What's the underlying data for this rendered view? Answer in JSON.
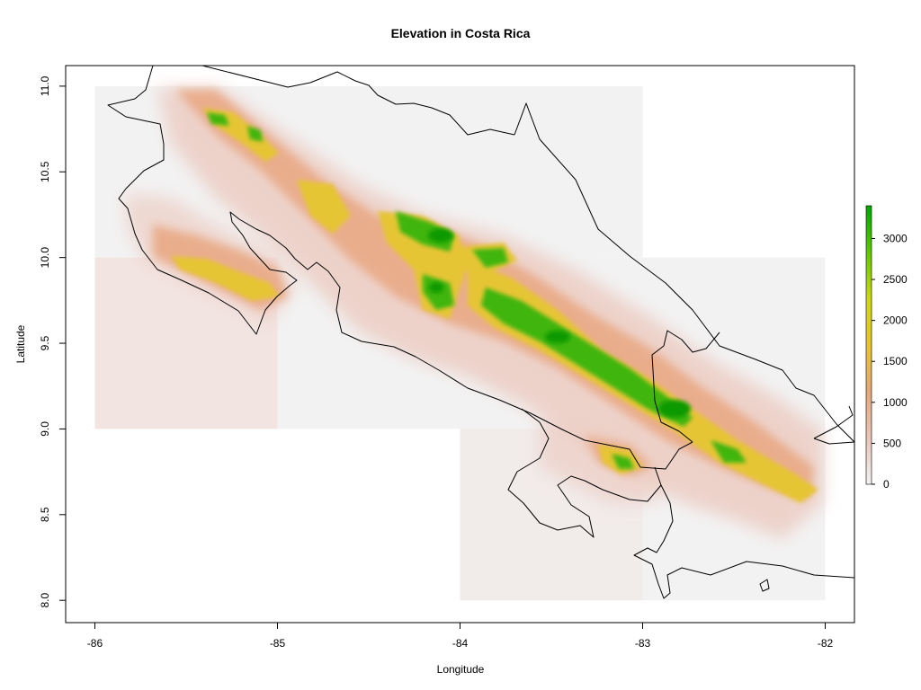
{
  "chart_data": {
    "type": "heatmap",
    "title": "Elevation in Costa Rica",
    "xlabel": "Longitude",
    "ylabel": "Latitude",
    "x_ticks": [
      -86,
      -85,
      -84,
      -83,
      -82
    ],
    "x_tick_labels": [
      "-86",
      "-85",
      "-84",
      "-83",
      "-82"
    ],
    "y_ticks": [
      8.0,
      8.5,
      9.0,
      9.5,
      10.0,
      10.5,
      11.0
    ],
    "y_tick_labels": [
      "8.0",
      "8.5",
      "9.0",
      "9.5",
      "10.0",
      "10.5",
      "11.0"
    ],
    "xlim": [
      -86.16,
      -81.84
    ],
    "ylim": [
      7.87,
      11.12
    ],
    "legend": {
      "position": "right",
      "min": 0,
      "max": 3400,
      "ticks": [
        0,
        500,
        1000,
        1500,
        2000,
        2500,
        3000
      ],
      "tick_labels": [
        "0",
        "500",
        "1000",
        "1500",
        "2000",
        "2500",
        "3000"
      ],
      "colors": [
        "#f2f2f2",
        "#eac5b6",
        "#e8a779",
        "#e9c232",
        "#cfd90a",
        "#5ec70a",
        "#00a600"
      ]
    },
    "tiles": [
      {
        "lon": [
          -86,
          -85
        ],
        "lat": [
          10,
          11
        ]
      },
      {
        "lon": [
          -85,
          -84
        ],
        "lat": [
          10,
          11
        ]
      },
      {
        "lon": [
          -84,
          -83
        ],
        "lat": [
          10,
          11
        ]
      },
      {
        "lon": [
          -86,
          -85
        ],
        "lat": [
          9,
          10
        ]
      },
      {
        "lon": [
          -85,
          -84
        ],
        "lat": [
          9,
          10
        ]
      },
      {
        "lon": [
          -84,
          -83
        ],
        "lat": [
          9,
          10
        ]
      },
      {
        "lon": [
          -83,
          -82
        ],
        "lat": [
          9,
          10
        ]
      },
      {
        "lon": [
          -84,
          -83
        ],
        "lat": [
          8,
          9
        ]
      },
      {
        "lon": [
          -83,
          -82
        ],
        "lat": [
          8,
          9
        ]
      }
    ],
    "border_color": "#000000",
    "background_color": "#f2f2f2"
  }
}
